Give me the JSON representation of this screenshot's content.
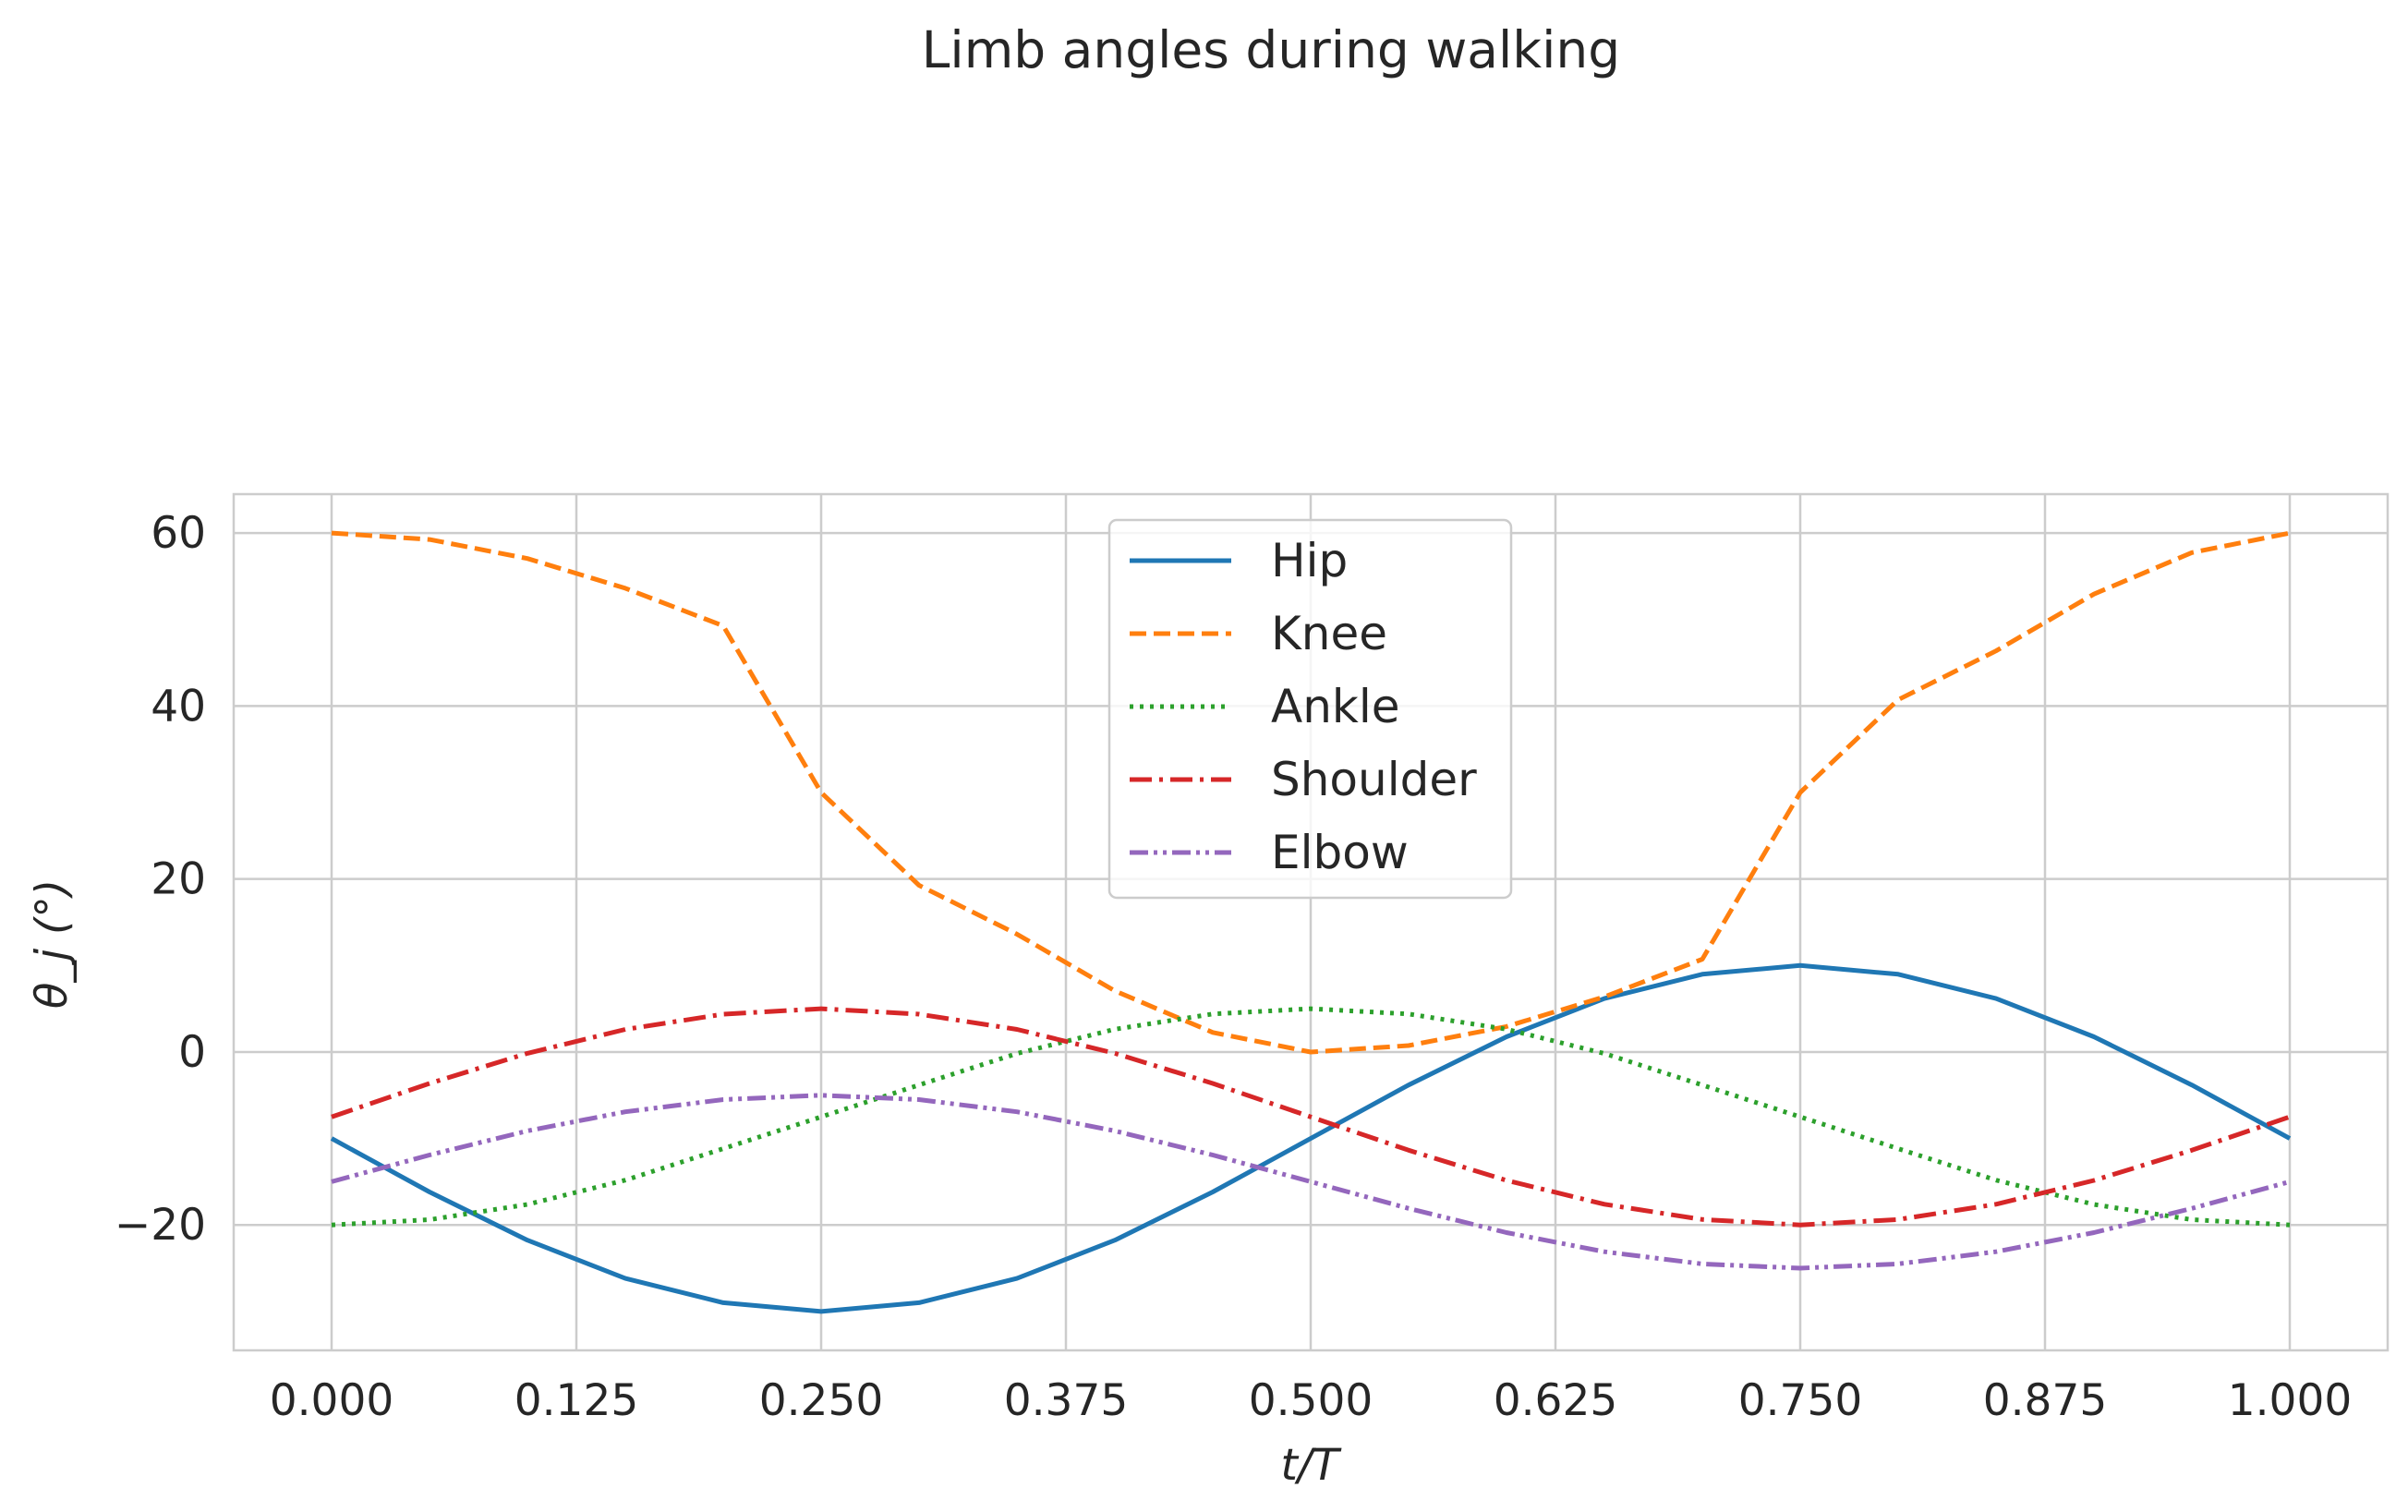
{
  "chart_data": {
    "type": "line",
    "title": "Limb angles during walking",
    "xlabel": "t/T",
    "ylabel": "θ_j (°)",
    "xlim": [
      -0.05,
      1.05
    ],
    "ylim": [
      -34.5,
      64.5
    ],
    "xticks": [
      0.0,
      0.125,
      0.25,
      0.375,
      0.5,
      0.625,
      0.75,
      0.875,
      1.0
    ],
    "xtick_labels": [
      "0.000",
      "0.125",
      "0.250",
      "0.375",
      "0.500",
      "0.625",
      "0.750",
      "0.875",
      "1.000"
    ],
    "yticks": [
      -20,
      0,
      20,
      40,
      60
    ],
    "ytick_labels": [
      "−20",
      "0",
      "20",
      "40",
      "60"
    ],
    "grid": true,
    "legend_position": "upper center",
    "x": [
      0.0,
      0.05,
      0.1,
      0.15,
      0.2,
      0.25,
      0.3,
      0.35,
      0.4,
      0.45,
      0.5,
      0.55,
      0.6,
      0.65,
      0.7,
      0.75,
      0.8,
      0.85,
      0.9,
      0.95,
      1.0
    ],
    "series": [
      {
        "name": "Hip",
        "color": "#1f77b4",
        "dash": "solid",
        "values": [
          -10.0,
          -16.18,
          -21.76,
          -26.18,
          -28.99,
          -30.0,
          -28.99,
          -26.18,
          -21.76,
          -16.18,
          -10.0,
          -3.82,
          1.76,
          6.18,
          8.99,
          10.0,
          8.99,
          6.18,
          1.76,
          -3.82,
          -10.0
        ]
      },
      {
        "name": "Knee",
        "color": "#ff7f0e",
        "dash": "dashed",
        "values": [
          60.0,
          59.26,
          57.06,
          53.62,
          49.27,
          30.0,
          19.27,
          13.62,
          7.06,
          2.26,
          0.0,
          0.74,
          2.94,
          6.38,
          10.73,
          30.0,
          40.73,
          46.38,
          52.94,
          57.74,
          60.0
        ]
      },
      {
        "name": "Ankle",
        "color": "#2ca02c",
        "dash": "dotted",
        "values": [
          -20.0,
          -19.39,
          -17.63,
          -14.82,
          -11.18,
          -7.5,
          -3.82,
          -0.18,
          2.63,
          4.39,
          5.0,
          4.39,
          2.63,
          -0.18,
          -3.82,
          -7.5,
          -11.18,
          -14.82,
          -17.63,
          -19.39,
          -20.0
        ]
      },
      {
        "name": "Shoulder",
        "color": "#d62728",
        "dash": "dashdot",
        "values": [
          -7.5,
          -3.64,
          -0.15,
          2.61,
          4.37,
          5.0,
          4.37,
          2.61,
          -0.15,
          -3.64,
          -7.5,
          -11.36,
          -14.85,
          -17.61,
          -19.37,
          -20.0,
          -19.37,
          -17.61,
          -14.85,
          -11.36,
          -7.5
        ]
      },
      {
        "name": "Elbow",
        "color": "#9467bd",
        "dash": "dashdotdot",
        "values": [
          -15.0,
          -11.91,
          -9.12,
          -6.91,
          -5.5,
          -5.0,
          -5.5,
          -6.91,
          -9.12,
          -11.91,
          -15.0,
          -18.09,
          -20.88,
          -23.09,
          -24.5,
          -25.0,
          -24.5,
          -23.09,
          -20.88,
          -18.09,
          -15.0
        ]
      }
    ]
  }
}
